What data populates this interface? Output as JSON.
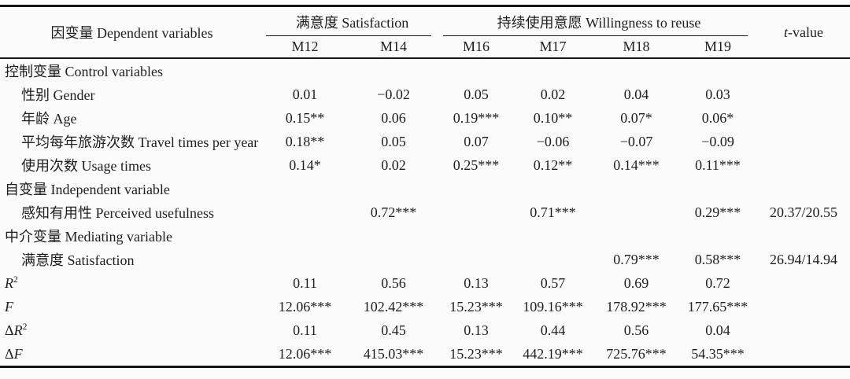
{
  "colors": {
    "background": "#fbfbfb",
    "text": "#1e1e1e",
    "rule": "#141414"
  },
  "table": {
    "header": {
      "stub": "因变量 Dependent variables",
      "groups": [
        {
          "label": "满意度 Satisfaction",
          "models": [
            "M12",
            "M14"
          ]
        },
        {
          "label": "持续使用意愿 Willingness to reuse",
          "models": [
            "M16",
            "M17",
            "M18",
            "M19"
          ]
        }
      ],
      "t_italic": "t",
      "t_rest": "-value"
    },
    "rows": [
      {
        "name": "control-variables-section",
        "indent": false,
        "label": [
          [
            "text",
            "控制变量 Control variables"
          ]
        ],
        "values": [
          "",
          "",
          "",
          "",
          "",
          ""
        ],
        "t": ""
      },
      {
        "name": "gender",
        "indent": true,
        "label": [
          [
            "text",
            "性别 Gender"
          ]
        ],
        "values": [
          "0.01",
          "−0.02",
          "0.05",
          "0.02",
          "0.04",
          "0.03"
        ],
        "t": ""
      },
      {
        "name": "age",
        "indent": true,
        "label": [
          [
            "text",
            "年龄 Age"
          ]
        ],
        "values": [
          "0.15**",
          "0.06",
          "0.19***",
          "0.10**",
          "0.07*",
          "0.06*"
        ],
        "t": ""
      },
      {
        "name": "travel-times-per-year",
        "indent": true,
        "label": [
          [
            "text",
            "平均每年旅游次数 Travel times per year"
          ]
        ],
        "values": [
          "0.18**",
          "0.05",
          "0.07",
          "−0.06",
          "−0.07",
          "−0.09"
        ],
        "t": ""
      },
      {
        "name": "usage-times",
        "indent": true,
        "label": [
          [
            "text",
            "使用次数 Usage times"
          ]
        ],
        "values": [
          "0.14*",
          "0.02",
          "0.25***",
          "0.12**",
          "0.14***",
          "0.11***"
        ],
        "t": ""
      },
      {
        "name": "independent-variable-section",
        "indent": false,
        "label": [
          [
            "text",
            "自变量 Independent variable"
          ]
        ],
        "values": [
          "",
          "",
          "",
          "",
          "",
          ""
        ],
        "t": ""
      },
      {
        "name": "perceived-usefulness",
        "indent": true,
        "label": [
          [
            "text",
            "感知有用性 Perceived usefulness"
          ]
        ],
        "values": [
          "",
          "0.72***",
          "",
          "0.71***",
          "",
          "0.29***"
        ],
        "t": "20.37/20.55"
      },
      {
        "name": "mediating-variable-section",
        "indent": false,
        "label": [
          [
            "text",
            "中介变量 Mediating variable"
          ]
        ],
        "values": [
          "",
          "",
          "",
          "",
          "",
          ""
        ],
        "t": ""
      },
      {
        "name": "satisfaction",
        "indent": true,
        "label": [
          [
            "text",
            "满意度 Satisfaction"
          ]
        ],
        "values": [
          "",
          "",
          "",
          "",
          "0.79***",
          "0.58***"
        ],
        "t": "26.94/14.94"
      },
      {
        "name": "r-squared",
        "indent": false,
        "label": [
          [
            "i",
            "R"
          ],
          [
            "sup",
            "2"
          ]
        ],
        "values": [
          "0.11",
          "0.56",
          "0.13",
          "0.57",
          "0.69",
          "0.72"
        ],
        "t": ""
      },
      {
        "name": "f-statistic",
        "indent": false,
        "label": [
          [
            "i",
            "F"
          ]
        ],
        "values": [
          "12.06***",
          "102.42***",
          "15.23***",
          "109.16***",
          "178.92***",
          "177.65***"
        ],
        "t": ""
      },
      {
        "name": "delta-r-squared",
        "indent": false,
        "label": [
          [
            "text",
            "Δ"
          ],
          [
            "i",
            "R"
          ],
          [
            "sup",
            "2"
          ]
        ],
        "values": [
          "0.11",
          "0.45",
          "0.13",
          "0.44",
          "0.56",
          "0.04"
        ],
        "t": ""
      },
      {
        "name": "delta-f",
        "indent": false,
        "label": [
          [
            "text",
            "Δ"
          ],
          [
            "i",
            "F"
          ]
        ],
        "values": [
          "12.06***",
          "415.03***",
          "15.23***",
          "442.19***",
          "725.76***",
          "54.35***"
        ],
        "t": ""
      }
    ]
  }
}
